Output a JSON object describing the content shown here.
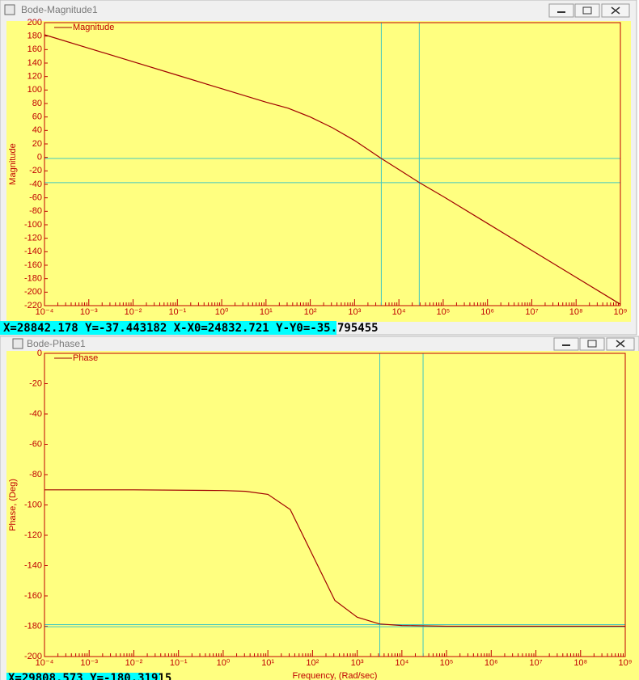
{
  "windows": [
    {
      "title": "Bode-Magnitude1",
      "status": "X=28842.178  Y=-37.443182 X-X0=24832.721 Y-Y0=-35.795455",
      "chart": {
        "type": "line",
        "ylabel": "Magnitude",
        "xscale": "log",
        "xlim": [
          0.0001,
          1000000000
        ],
        "ylim": [
          -220,
          200
        ],
        "xticks": [
          {
            "value": 0.0001,
            "label": "10⁻⁴"
          },
          {
            "value": 0.001,
            "label": "10⁻³"
          },
          {
            "value": 0.01,
            "label": "10⁻²"
          },
          {
            "value": 0.1,
            "label": "10⁻¹"
          },
          {
            "value": 1,
            "label": "10⁰"
          },
          {
            "value": 10,
            "label": "10¹"
          },
          {
            "value": 100,
            "label": "10²"
          },
          {
            "value": 1000,
            "label": "10³"
          },
          {
            "value": 10000,
            "label": "10⁴"
          },
          {
            "value": 100000,
            "label": "10⁵"
          },
          {
            "value": 1000000,
            "label": "10⁶"
          },
          {
            "value": 10000000,
            "label": "10⁷"
          },
          {
            "value": 100000000,
            "label": "10⁸"
          },
          {
            "value": 1000000000,
            "label": "10⁹"
          }
        ],
        "yticks": [
          200,
          180,
          160,
          140,
          120,
          100,
          80,
          60,
          40,
          20,
          0,
          -20,
          -40,
          -60,
          -80,
          -100,
          -120,
          -140,
          -160,
          -180,
          -200,
          -220
        ],
        "x": [
          0.0001,
          0.001,
          0.01,
          0.1,
          1,
          10,
          31.6,
          100,
          316,
          1000,
          4009,
          10000,
          28842,
          100000,
          1000000,
          10000000,
          100000000,
          1000000000
        ],
        "series": [
          {
            "name": "Magnitude",
            "color": "#a00000",
            "values": [
              182,
              162,
              142,
              122,
              102,
              82,
              73,
              60,
              44,
              25,
              -1.6,
              -18,
              -37.4,
              -58,
              -98,
              -138,
              -178,
              -218
            ]
          }
        ],
        "cursors": {
          "color": "#40c8c0",
          "x": [
            4009.457,
            28842.178
          ],
          "y": [
            -1.647727,
            -37.443182
          ]
        }
      }
    },
    {
      "title": "Bode-Phase1",
      "status": "X=29808.573  Y=-180.31915",
      "chart": {
        "type": "line",
        "ylabel": "Phase, (Deg)",
        "xlabel": "Frequency, (Rad/sec)",
        "xscale": "log",
        "xlim": [
          0.0001,
          1000000000
        ],
        "ylim": [
          -200,
          0
        ],
        "xticks": [
          {
            "value": 0.0001,
            "label": "10⁻⁴"
          },
          {
            "value": 0.001,
            "label": "10⁻³"
          },
          {
            "value": 0.01,
            "label": "10⁻²"
          },
          {
            "value": 0.1,
            "label": "10⁻¹"
          },
          {
            "value": 1,
            "label": "10⁰"
          },
          {
            "value": 10,
            "label": "10¹"
          },
          {
            "value": 100,
            "label": "10²"
          },
          {
            "value": 1000,
            "label": "10³"
          },
          {
            "value": 10000,
            "label": "10⁴"
          },
          {
            "value": 100000,
            "label": "10⁵"
          },
          {
            "value": 1000000,
            "label": "10⁶"
          },
          {
            "value": 10000000,
            "label": "10⁷"
          },
          {
            "value": 100000000,
            "label": "10⁸"
          },
          {
            "value": 1000000000,
            "label": "10⁹"
          }
        ],
        "yticks": [
          0,
          -20,
          -40,
          -60,
          -80,
          -100,
          -120,
          -140,
          -160,
          -180,
          -200
        ],
        "x": [
          0.0001,
          0.01,
          1,
          3.16,
          10,
          31.6,
          100,
          316,
          1000,
          3162,
          10000,
          100000,
          1000000000
        ],
        "series": [
          {
            "name": "Phase",
            "color": "#a00000",
            "values": [
              -90,
              -90,
              -90.5,
              -91,
              -93,
              -103,
              -133,
              -163,
              -174,
              -178.5,
              -179.5,
              -180,
              -180
            ]
          }
        ],
        "cursors": {
          "color": "#40c8c0",
          "x": [
            3200,
            29808.573
          ],
          "y": [
            -178.9,
            -180.31915
          ]
        }
      }
    }
  ]
}
